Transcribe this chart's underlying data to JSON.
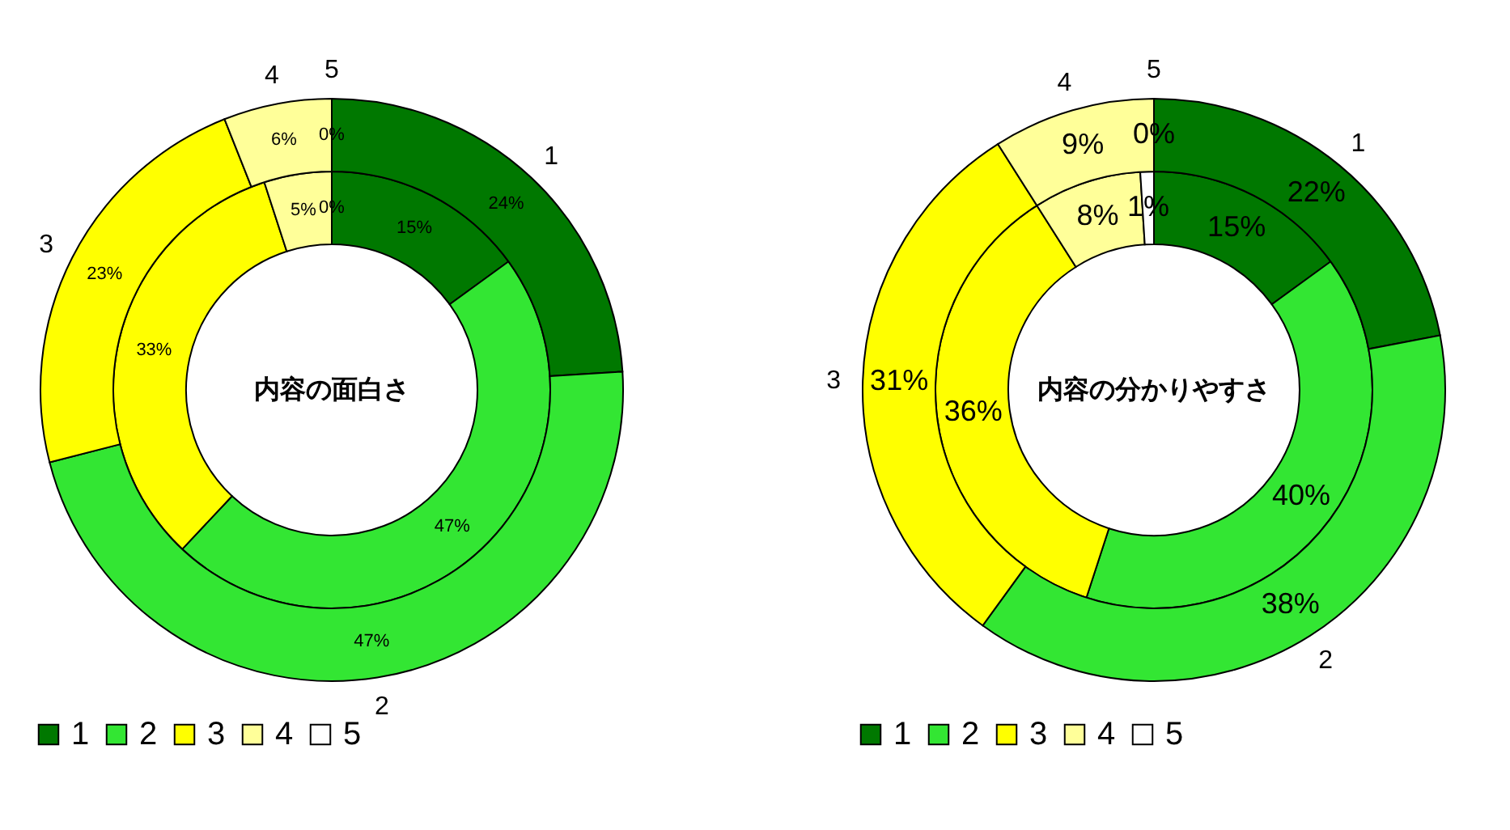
{
  "chart_data": [
    {
      "type": "donut",
      "title": "内容の面白さ",
      "categories": [
        "1",
        "2",
        "3",
        "4",
        "5"
      ],
      "colors": [
        "#007800",
        "#33e633",
        "#ffff00",
        "#ffff99",
        "#ffffff"
      ],
      "legend": "bottom",
      "series": [
        {
          "values": [
            15,
            47,
            33,
            5,
            0
          ],
          "value_labels": [
            "15%",
            "47%",
            "33%",
            "5%",
            "0%"
          ]
        },
        {
          "values": [
            24,
            47,
            23,
            6,
            0
          ],
          "value_labels": [
            "24%",
            "47%",
            "23%",
            "6%",
            "0%"
          ]
        }
      ]
    },
    {
      "type": "donut",
      "title": "内容の分かりやすさ",
      "categories": [
        "1",
        "2",
        "3",
        "4",
        "5"
      ],
      "colors": [
        "#007800",
        "#33e633",
        "#ffff00",
        "#ffff99",
        "#ffffff"
      ],
      "legend": "bottom",
      "series": [
        {
          "values": [
            15,
            40,
            36,
            8,
            1
          ],
          "value_labels": [
            "15%",
            "40%",
            "36%",
            "8%",
            "1%"
          ]
        },
        {
          "values": [
            22,
            38,
            31,
            9,
            0
          ],
          "value_labels": [
            "22%",
            "38%",
            "31%",
            "9%",
            "0%"
          ]
        }
      ]
    }
  ]
}
